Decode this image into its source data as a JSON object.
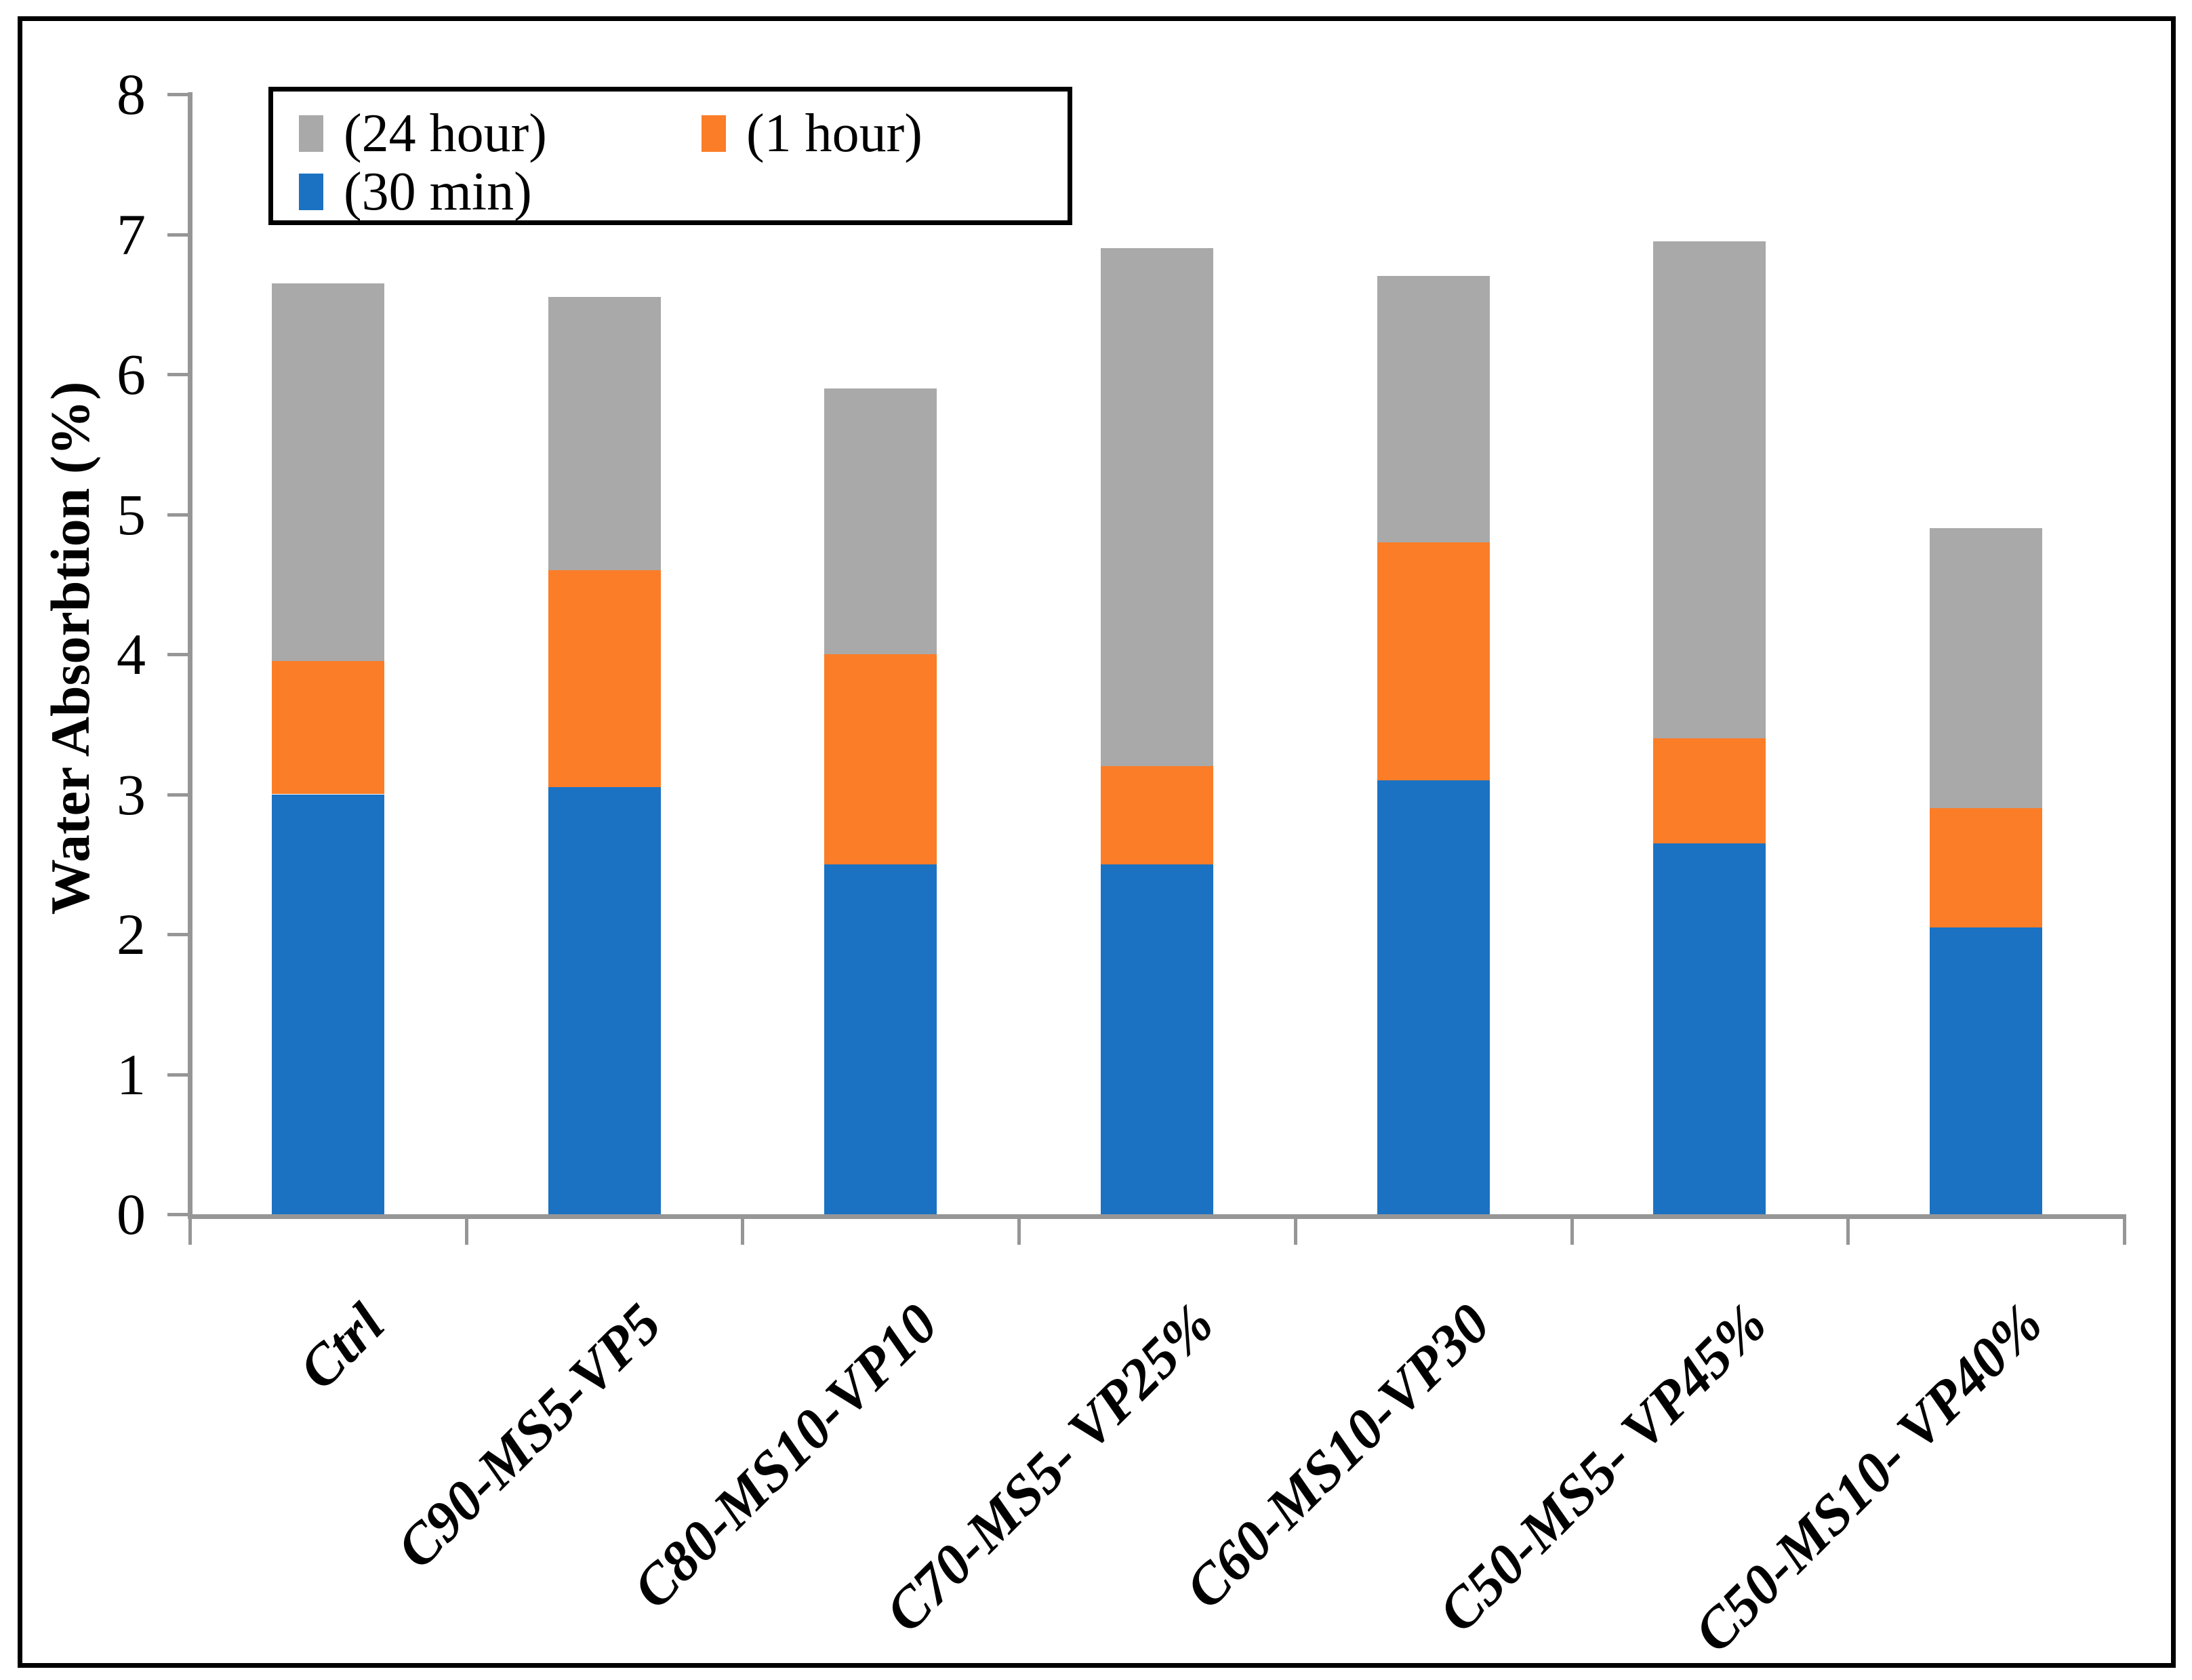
{
  "chart_data": {
    "type": "bar",
    "stacked": true,
    "title": "",
    "ylabel": "Water Absorbtion (%)",
    "xlabel": "",
    "ylim": [
      0,
      8
    ],
    "ytick_labels": [
      "0",
      "1",
      "2",
      "3",
      "4",
      "5",
      "6",
      "7",
      "8"
    ],
    "grid": false,
    "legend_position": "top-left-inside",
    "legend_rows": [
      [
        "(24 hour)",
        "(1 hour)"
      ],
      [
        "(30 min)"
      ]
    ],
    "categories": [
      "Ctrl",
      "C90-MS5-VP5",
      "C80-MS10-VP10",
      "C70-MS5- VP25%",
      "C60-MS10-VP30",
      "C50-MS5- VP45%",
      "C50-MS10- VP40%"
    ],
    "series": [
      {
        "name": "(30 min)",
        "color": "#1B72C2",
        "values": [
          3.0,
          3.05,
          2.5,
          2.5,
          3.1,
          2.65,
          2.05
        ]
      },
      {
        "name": "(1 hour)",
        "color": "#FB7D28",
        "values": [
          0.95,
          1.55,
          1.5,
          0.7,
          1.7,
          0.75,
          0.85
        ]
      },
      {
        "name": "(24 hour)",
        "color": "#A9A9A9",
        "values": [
          2.7,
          1.95,
          1.9,
          3.7,
          1.9,
          3.55,
          2.0
        ]
      }
    ],
    "stack_tops": {
      "after_30_min": [
        3.0,
        3.05,
        2.5,
        2.5,
        3.1,
        2.65,
        2.05
      ],
      "after_1_hour": [
        3.95,
        4.6,
        4.0,
        3.2,
        4.8,
        3.4,
        2.9
      ],
      "after_24_hour": [
        6.65,
        6.6,
        5.9,
        6.9,
        6.7,
        6.95,
        4.9
      ]
    },
    "colors": {
      "axis": "#969696",
      "frame": "#000000",
      "background": "#FFFFFF"
    }
  }
}
